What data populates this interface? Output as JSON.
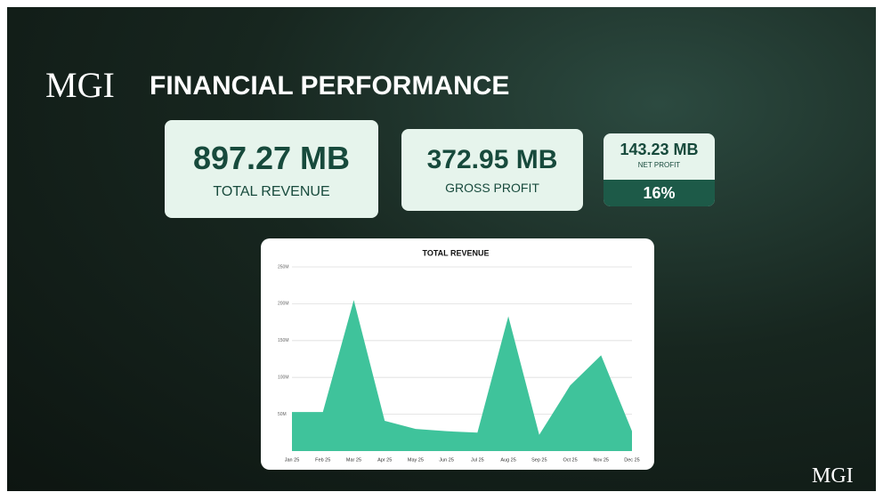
{
  "logo": "MGI",
  "header": {
    "title": "FINANCIAL PERFORMANCE"
  },
  "cards": [
    {
      "value": "897.27 MB",
      "label": "TOTAL REVENUE"
    },
    {
      "value": "372.95 MB",
      "label": "GROSS PROFIT"
    },
    {
      "value": "143.23 MB",
      "label": "NET PROFIT",
      "margin": "16%"
    }
  ],
  "chart_data": {
    "type": "area",
    "title": "TOTAL REVENUE",
    "categories": [
      "Jan 25",
      "Feb 25",
      "Mar 25",
      "Apr 25",
      "May 25",
      "Jun 25",
      "Jul 25",
      "Aug 25",
      "Sep 25",
      "Oct 25",
      "Nov 25",
      "Dec 25"
    ],
    "values": [
      53,
      53,
      205,
      41,
      30,
      27,
      25,
      183,
      22,
      89,
      130,
      27
    ],
    "color": "#3fc39b",
    "ylim": [
      0,
      250
    ],
    "yticks": [
      {
        "value": 50,
        "label": "50M"
      },
      {
        "value": 100,
        "label": "100M"
      },
      {
        "value": 150,
        "label": "150M"
      },
      {
        "value": 200,
        "label": "200M"
      },
      {
        "value": 250,
        "label": "250M"
      }
    ],
    "grid": true
  }
}
